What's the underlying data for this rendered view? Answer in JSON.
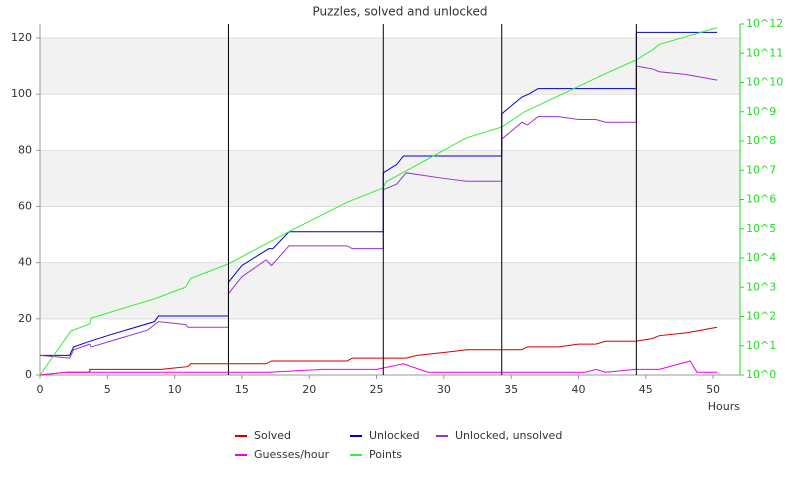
{
  "chart_data": {
    "type": "line",
    "title": "Puzzles, solved and unlocked",
    "x_label": "Hours",
    "xlim": [
      0,
      52
    ],
    "xticks": [
      0,
      5,
      10,
      15,
      20,
      25,
      30,
      35,
      40,
      45,
      50
    ],
    "ylim": [
      0,
      125
    ],
    "yticks": [
      0,
      20,
      40,
      60,
      80,
      100,
      120
    ],
    "y2lim": [
      1,
      1000000000000
    ],
    "y2scale": "log",
    "y2ticks": [
      {
        "value": 1,
        "label": "10^0"
      },
      {
        "value": 10,
        "label": "10^1"
      },
      {
        "value": 100,
        "label": "10^2"
      },
      {
        "value": 1000,
        "label": "10^3"
      },
      {
        "value": 10000,
        "label": "10^4"
      },
      {
        "value": 100000,
        "label": "10^5"
      },
      {
        "value": 1000000,
        "label": "10^6"
      },
      {
        "value": 10000000,
        "label": "10^7"
      },
      {
        "value": 100000000,
        "label": "10^8"
      },
      {
        "value": 1000000000,
        "label": "10^9"
      },
      {
        "value": 10000000000,
        "label": "10^10"
      },
      {
        "value": 100000000000,
        "label": "10^11"
      },
      {
        "value": 1000000000000,
        "label": "10^12"
      }
    ],
    "y2color": "#22dd22",
    "grid": true,
    "legend": "bottom",
    "vlines": [
      14,
      25.5,
      34.3,
      44.3
    ],
    "series": [
      {
        "name": "Solved",
        "color": "#cc0000",
        "x": [
          0,
          2,
          3.7,
          3.7,
          9,
          11,
          11.2,
          16.8,
          17.2,
          22.8,
          23.2,
          27.2,
          28,
          30,
          31.7,
          35.8,
          36.2,
          38.5,
          40,
          41.3,
          42,
          44.2,
          45.5,
          46,
          48,
          50.3
        ],
        "values": [
          0,
          1,
          1,
          2,
          2,
          3,
          4,
          4,
          5,
          5,
          6,
          6,
          7,
          8,
          9,
          9,
          10,
          10,
          11,
          11,
          12,
          12,
          13,
          14,
          15,
          17
        ]
      },
      {
        "name": "Unlocked",
        "color": "#0000cc",
        "x": [
          0,
          2.2,
          2.5,
          3.7,
          5,
          8.5,
          8.8,
          14,
          14,
          15,
          17,
          17.3,
          18.5,
          25.5,
          25.5,
          26.5,
          27,
          34.3,
          34.3,
          35.8,
          36.3,
          37,
          44.3,
          44.3,
          50.3
        ],
        "values": [
          7,
          7,
          10,
          12,
          14,
          19,
          21,
          21,
          33,
          39,
          45,
          45,
          51,
          51,
          72,
          75,
          78,
          78,
          93,
          99,
          100,
          102,
          102,
          122,
          122
        ]
      },
      {
        "name": "Unlocked, unsolved",
        "color": "#9933cc",
        "x": [
          0,
          2.2,
          2.5,
          3.7,
          3.8,
          8,
          8.8,
          10.8,
          11,
          14,
          14,
          15,
          16.8,
          17.2,
          18.5,
          22.8,
          23.2,
          25.5,
          25.5,
          26.5,
          27.2,
          30,
          31.7,
          34.3,
          34.3,
          35.8,
          36.2,
          37,
          38.5,
          40,
          41.3,
          42,
          44.3,
          44.3,
          45.5,
          46,
          48,
          50.3
        ],
        "values": [
          7,
          6,
          9,
          11,
          10,
          16,
          19,
          18,
          17,
          17,
          29,
          35,
          41,
          39,
          46,
          46,
          45,
          45,
          66,
          68,
          72,
          70,
          69,
          69,
          84,
          90,
          89,
          92,
          92,
          91,
          91,
          90,
          90,
          110,
          109,
          108,
          107,
          105
        ]
      },
      {
        "name": "Guesses/hour",
        "color": "#ee00ee",
        "x": [
          0,
          2,
          17,
          21,
          25,
          27,
          28.8,
          40.5,
          41.3,
          42,
          44.3,
          46,
          48.3,
          48.8,
          50.3
        ],
        "values": [
          0,
          1,
          1,
          2,
          2,
          4,
          1,
          1,
          2,
          1,
          2,
          2,
          5,
          1,
          1
        ]
      },
      {
        "name": "Points",
        "color": "#33ee33",
        "axis": "y2",
        "x": [
          0,
          2.3,
          3.7,
          3.8,
          8.5,
          10.8,
          11.2,
          14,
          18.5,
          22.8,
          25.5,
          25.7,
          31.7,
          34.3,
          36,
          42,
          44.3,
          45.5,
          46,
          50.3
        ],
        "values": [
          1,
          32,
          56,
          89,
          400,
          1000,
          2000,
          6300,
          80000,
          800000,
          2500000,
          4000000,
          130000000,
          300000000,
          1000000000,
          20000000000,
          60000000000,
          130000000000,
          200000000000,
          750000000000
        ]
      }
    ]
  }
}
